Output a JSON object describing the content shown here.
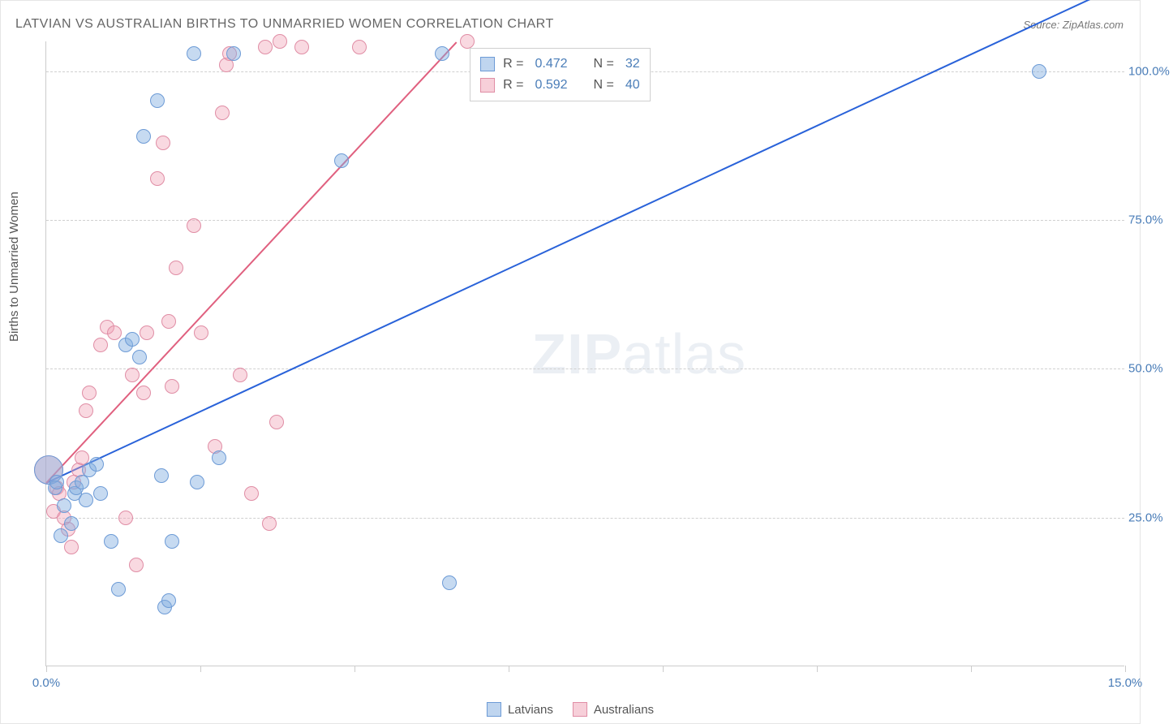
{
  "title": "LATVIAN VS AUSTRALIAN BIRTHS TO UNMARRIED WOMEN CORRELATION CHART",
  "source": "Source: ZipAtlas.com",
  "ylabel": "Births to Unmarried Women",
  "watermark_bold": "ZIP",
  "watermark_light": "atlas",
  "chart": {
    "type": "scatter",
    "background_color": "#ffffff",
    "grid_color": "#d0d0d0",
    "grid_style": "dashed",
    "border_color": "#cccccc",
    "xlim": [
      0,
      15
    ],
    "ylim": [
      0,
      105
    ],
    "xtick_values": [
      0,
      2.14,
      4.29,
      6.43,
      8.57,
      10.71,
      12.86,
      15
    ],
    "xtick_labels": {
      "0": "0.0%",
      "15": "15.0%"
    },
    "ytick_values": [
      25,
      50,
      75,
      100
    ],
    "ytick_labels": [
      "25.0%",
      "50.0%",
      "75.0%",
      "100.0%"
    ],
    "ytick_label_color": "#4a7db8",
    "xtick_label_color": "#4a7db8",
    "axis_label_color": "#555555",
    "title_color": "#666666",
    "title_fontsize": 16,
    "label_fontsize": 15,
    "marker_size": 18,
    "marker_size_large": 36,
    "line_width": 2
  },
  "series": {
    "blue": {
      "label": "Latvians",
      "fill_color": "rgba(128,172,224,0.45)",
      "stroke_color": "#6d9bd6",
      "line_color": "#2962d9",
      "legend_r": "0.472",
      "legend_n": "32",
      "trend": {
        "x1": 0,
        "y1": 31,
        "x2": 15,
        "y2": 115
      },
      "points": [
        [
          0.03,
          33,
          36
        ],
        [
          0.12,
          30,
          18
        ],
        [
          0.15,
          31,
          18
        ],
        [
          0.2,
          22,
          18
        ],
        [
          0.25,
          27,
          18
        ],
        [
          0.35,
          24,
          18
        ],
        [
          0.4,
          29,
          18
        ],
        [
          0.42,
          30,
          18
        ],
        [
          0.5,
          31,
          18
        ],
        [
          0.55,
          28,
          18
        ],
        [
          0.6,
          33,
          18
        ],
        [
          0.7,
          34,
          18
        ],
        [
          0.75,
          29,
          18
        ],
        [
          0.9,
          21,
          18
        ],
        [
          1.0,
          13,
          18
        ],
        [
          1.1,
          54,
          18
        ],
        [
          1.2,
          55,
          18
        ],
        [
          1.3,
          52,
          18
        ],
        [
          1.35,
          89,
          18
        ],
        [
          1.55,
          95,
          18
        ],
        [
          1.6,
          32,
          18
        ],
        [
          1.65,
          10,
          18
        ],
        [
          1.7,
          11,
          18
        ],
        [
          1.75,
          21,
          18
        ],
        [
          2.05,
          103,
          18
        ],
        [
          2.1,
          31,
          18
        ],
        [
          2.4,
          35,
          18
        ],
        [
          2.6,
          103,
          18
        ],
        [
          4.1,
          85,
          18
        ],
        [
          5.5,
          103,
          18
        ],
        [
          5.6,
          14,
          18
        ],
        [
          13.8,
          100,
          18
        ]
      ]
    },
    "pink": {
      "label": "Australians",
      "fill_color": "rgba(240,160,180,0.40)",
      "stroke_color": "#e08da5",
      "line_color": "#e0607f",
      "legend_r": "0.592",
      "legend_n": "40",
      "trend": {
        "x1": 0,
        "y1": 31,
        "x2": 5.7,
        "y2": 105
      },
      "points": [
        [
          0.03,
          33,
          36
        ],
        [
          0.1,
          26,
          18
        ],
        [
          0.15,
          30,
          18
        ],
        [
          0.18,
          29,
          18
        ],
        [
          0.25,
          25,
          18
        ],
        [
          0.3,
          23,
          18
        ],
        [
          0.35,
          20,
          18
        ],
        [
          0.38,
          31,
          18
        ],
        [
          0.45,
          33,
          18
        ],
        [
          0.5,
          35,
          18
        ],
        [
          0.55,
          43,
          18
        ],
        [
          0.6,
          46,
          18
        ],
        [
          0.75,
          54,
          18
        ],
        [
          0.85,
          57,
          18
        ],
        [
          0.95,
          56,
          18
        ],
        [
          1.1,
          25,
          18
        ],
        [
          1.2,
          49,
          18
        ],
        [
          1.25,
          17,
          18
        ],
        [
          1.35,
          46,
          18
        ],
        [
          1.4,
          56,
          18
        ],
        [
          1.55,
          82,
          18
        ],
        [
          1.62,
          88,
          18
        ],
        [
          1.7,
          58,
          18
        ],
        [
          1.75,
          47,
          18
        ],
        [
          1.8,
          67,
          18
        ],
        [
          2.05,
          74,
          18
        ],
        [
          2.15,
          56,
          18
        ],
        [
          2.35,
          37,
          18
        ],
        [
          2.45,
          93,
          18
        ],
        [
          2.5,
          101,
          18
        ],
        [
          2.55,
          103,
          18
        ],
        [
          2.7,
          49,
          18
        ],
        [
          2.85,
          29,
          18
        ],
        [
          3.05,
          104,
          18
        ],
        [
          3.1,
          24,
          18
        ],
        [
          3.2,
          41,
          18
        ],
        [
          3.25,
          105,
          18
        ],
        [
          3.55,
          104,
          18
        ],
        [
          4.35,
          104,
          18
        ],
        [
          5.85,
          105,
          18
        ]
      ]
    }
  },
  "legend_top": {
    "r_label": "R =",
    "n_label": "N ="
  },
  "legend_bottom": {
    "blue": "Latvians",
    "pink": "Australians"
  }
}
